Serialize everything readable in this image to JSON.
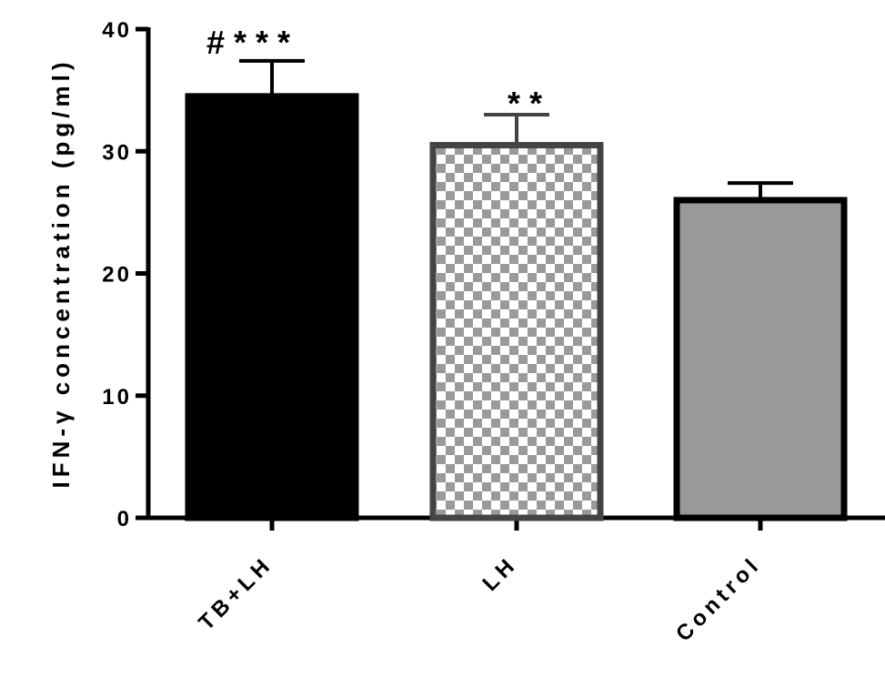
{
  "chart_data": {
    "type": "bar",
    "title": "",
    "xlabel": "",
    "ylabel": "IFN-γ concentration (pg/ml)",
    "ylim": [
      0,
      40
    ],
    "yticks": [
      0,
      10,
      20,
      30,
      40
    ],
    "categories": [
      "TB+LH",
      "LH",
      "Control"
    ],
    "values": [
      34.5,
      30.5,
      26
    ],
    "errors": [
      2.9,
      2.5,
      1.4
    ],
    "annotations": [
      "# * * *",
      "* *",
      ""
    ],
    "bar_styles": [
      {
        "fill": "#000000",
        "pattern": "solid"
      },
      {
        "fill": "#9a9a9a",
        "pattern": "checkerboard"
      },
      {
        "fill": "#999999",
        "pattern": "solid"
      }
    ],
    "grid": false,
    "legend": "none"
  }
}
